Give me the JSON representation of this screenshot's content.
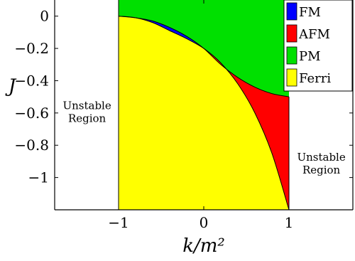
{
  "chart_data": {
    "type": "area",
    "title": "",
    "xlabel": "k/m²",
    "ylabel": "J",
    "xlim": [
      -1.75,
      1.75
    ],
    "ylim": [
      -1.2,
      0.1
    ],
    "x_ticks": [
      -1,
      0,
      1
    ],
    "x_tick_labels": [
      "−1",
      "0",
      "1"
    ],
    "y_ticks": [
      0,
      -0.2,
      -0.4,
      -0.6,
      -0.8,
      -1
    ],
    "y_tick_labels": [
      "0",
      "−0.2",
      "−0.4",
      "−0.6",
      "−0.8",
      "−1"
    ],
    "grid": false,
    "legend_position": "top-right",
    "series": [
      {
        "name": "FM",
        "color": "#0000ff",
        "upper": [
          [
            -1,
            0
          ],
          [
            -0.8,
            -0.01
          ],
          [
            -0.6,
            -0.03
          ],
          [
            -0.4,
            -0.07
          ],
          [
            -0.2,
            -0.125
          ],
          [
            0,
            -0.2
          ]
        ],
        "lower": [
          [
            -1,
            0
          ],
          [
            -0.8,
            -0.01
          ],
          [
            -0.6,
            -0.04
          ],
          [
            -0.4,
            -0.09
          ],
          [
            -0.2,
            -0.14
          ],
          [
            0,
            -0.2
          ]
        ]
      },
      {
        "name": "AFM",
        "color": "#ff0000",
        "upper": [
          [
            0,
            -0.2
          ],
          [
            0.2,
            -0.3
          ],
          [
            0.4,
            -0.38
          ],
          [
            0.6,
            -0.44
          ],
          [
            0.8,
            -0.48
          ],
          [
            1,
            -0.5
          ]
        ],
        "lower": [
          [
            0,
            -0.2
          ],
          [
            0.2,
            -0.29
          ],
          [
            0.4,
            -0.42
          ],
          [
            0.6,
            -0.6
          ],
          [
            0.8,
            -0.85
          ],
          [
            1,
            -1.2
          ]
        ]
      },
      {
        "name": "PM",
        "color": "#00e000",
        "upper": [
          [
            -1,
            0.1
          ],
          [
            1,
            0.1
          ]
        ],
        "lower": [
          [
            -1,
            0
          ],
          [
            -0.8,
            -0.01
          ],
          [
            -0.6,
            -0.03
          ],
          [
            -0.4,
            -0.07
          ],
          [
            -0.2,
            -0.125
          ],
          [
            0,
            -0.2
          ],
          [
            0.2,
            -0.3
          ],
          [
            0.4,
            -0.38
          ],
          [
            0.6,
            -0.44
          ],
          [
            0.8,
            -0.48
          ],
          [
            1,
            -0.5
          ]
        ]
      },
      {
        "name": "Ferri",
        "color": "#ffff00",
        "upper": [
          [
            -1,
            0
          ],
          [
            -0.8,
            -0.01
          ],
          [
            -0.6,
            -0.04
          ],
          [
            -0.4,
            -0.09
          ],
          [
            -0.2,
            -0.14
          ],
          [
            0,
            -0.2
          ],
          [
            0.2,
            -0.29
          ],
          [
            0.4,
            -0.42
          ],
          [
            0.6,
            -0.6
          ],
          [
            0.8,
            -0.85
          ],
          [
            1,
            -1.2
          ]
        ],
        "lower": [
          [
            -1,
            -1.2
          ],
          [
            1,
            -1.2
          ]
        ]
      }
    ],
    "annotations": [
      {
        "lines": [
          "Unstable",
          "Region"
        ],
        "x": -1.37,
        "y": -0.6
      },
      {
        "lines": [
          "Unstable",
          "Region"
        ],
        "x": 1.38,
        "y": -0.92
      }
    ]
  }
}
